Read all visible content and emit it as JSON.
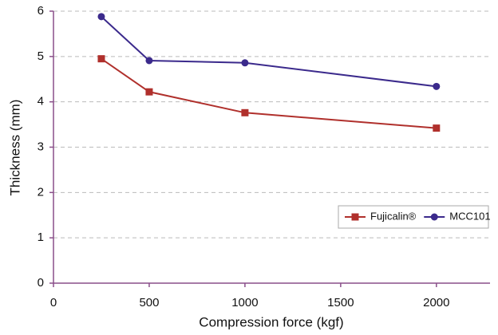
{
  "chart_data": {
    "type": "line",
    "x_label": "Compression force (kgf)",
    "y_label": "Thickness (mm)",
    "x": [
      250,
      500,
      1000,
      2000
    ],
    "series": [
      {
        "name": "Fujicalin®",
        "color": "#b0302c",
        "marker": "square",
        "values": [
          4.95,
          4.22,
          3.76,
          3.42
        ]
      },
      {
        "name": "MCC101",
        "color": "#3b2a8c",
        "marker": "circle",
        "values": [
          5.88,
          4.91,
          4.86,
          4.34
        ]
      }
    ],
    "xlim": [
      0,
      2280
    ],
    "xticks": [
      0,
      500,
      1000,
      1500,
      2000
    ],
    "ylim": [
      0,
      6
    ],
    "yticks": [
      0,
      1,
      2,
      3,
      4,
      5,
      6
    ],
    "grid": true,
    "legend": "center right"
  }
}
